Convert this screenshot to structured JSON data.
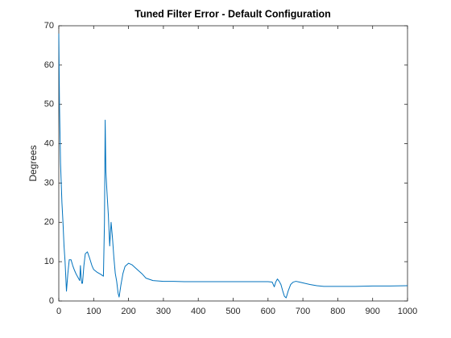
{
  "chart_data": {
    "type": "line",
    "title": "Tuned Filter Error - Default Configuration",
    "ylabel": "Degrees",
    "x": [
      0,
      2,
      5,
      9,
      12,
      15,
      18,
      22,
      26,
      30,
      35,
      40,
      45,
      50,
      55,
      60,
      62,
      64,
      66,
      68,
      72,
      76,
      82,
      88,
      95,
      100,
      110,
      120,
      128,
      131,
      133,
      135,
      138,
      142,
      146,
      150,
      154,
      158,
      162,
      166,
      170,
      173,
      178,
      184,
      190,
      200,
      210,
      220,
      230,
      240,
      250,
      260,
      270,
      285,
      300,
      330,
      360,
      400,
      440,
      480,
      520,
      560,
      600,
      612,
      618,
      622,
      627,
      632,
      637,
      642,
      647,
      652,
      658,
      665,
      672,
      680,
      690,
      700,
      720,
      740,
      760,
      780,
      800,
      850,
      900,
      950,
      1000
    ],
    "values": [
      68,
      50,
      35,
      25,
      20,
      14,
      10,
      2.5,
      7,
      10.5,
      10.5,
      9,
      7.8,
      6.8,
      6,
      5.2,
      9,
      6,
      4.5,
      4.5,
      9,
      12,
      12.5,
      11,
      9,
      8,
      7.3,
      6.8,
      6.3,
      20,
      46,
      33,
      28,
      22,
      14,
      20,
      16,
      11,
      7,
      5,
      2,
      1,
      4,
      7,
      8.8,
      9.6,
      9.2,
      8.4,
      7.6,
      6.8,
      5.8,
      5.5,
      5.2,
      5.1,
      5,
      5,
      4.9,
      4.9,
      4.9,
      4.9,
      4.9,
      4.9,
      4.9,
      4.8,
      3.6,
      4.8,
      5.6,
      5,
      4.2,
      2.6,
      1.2,
      0.8,
      2.6,
      4.2,
      4.8,
      5,
      4.8,
      4.6,
      4.2,
      3.9,
      3.7,
      3.7,
      3.7,
      3.7,
      3.8,
      3.8,
      3.9
    ],
    "color": "#0072bd",
    "xlim": [
      0,
      1000
    ],
    "xticks": [
      0,
      100,
      200,
      300,
      400,
      500,
      600,
      700,
      800,
      900,
      1000
    ],
    "ylim": [
      0,
      70
    ],
    "yticks": [
      0,
      10,
      20,
      30,
      40,
      50,
      60,
      70
    ],
    "grid": false
  }
}
